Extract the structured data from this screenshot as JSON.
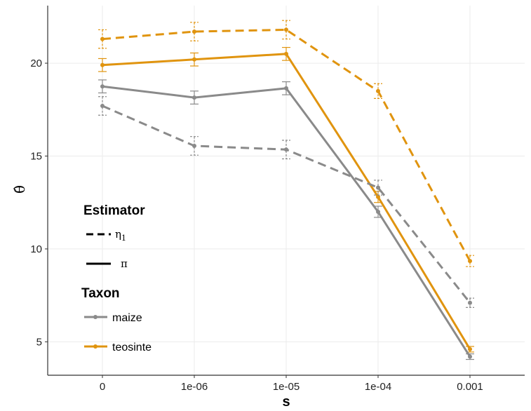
{
  "chart_data": {
    "type": "line",
    "xlabel": "s",
    "ylabel": "θ̂",
    "categories": [
      "0",
      "1e-06",
      "1e-05",
      "1e-04",
      "0.001"
    ],
    "ylim": [
      3.2,
      23.1
    ],
    "yticks": [
      5,
      10,
      15,
      20
    ],
    "grid": true,
    "legend": {
      "placement": "left-bottom-inside",
      "estimator_title": "Estimator",
      "estimator_entries": [
        {
          "label": "η",
          "sub": "1",
          "style": "dashed"
        },
        {
          "label": "π",
          "style": "solid"
        }
      ],
      "taxon_title": "Taxon",
      "taxon_entries": [
        {
          "label": "maize",
          "color": "#8a8a8a"
        },
        {
          "label": "teosinte",
          "color": "#e0940f"
        }
      ]
    },
    "series": [
      {
        "taxon": "teosinte",
        "estimator": "eta1",
        "color": "#e0940f",
        "style": "dashed",
        "values": [
          21.3,
          21.7,
          21.8,
          18.5,
          9.35
        ],
        "err": [
          0.5,
          0.5,
          0.5,
          0.4,
          0.3
        ]
      },
      {
        "taxon": "teosinte",
        "estimator": "pi",
        "color": "#e0940f",
        "style": "solid",
        "values": [
          19.9,
          20.2,
          20.5,
          12.8,
          4.6
        ],
        "err": [
          0.35,
          0.35,
          0.35,
          0.3,
          0.15
        ]
      },
      {
        "taxon": "maize",
        "estimator": "pi",
        "color": "#8a8a8a",
        "style": "solid",
        "values": [
          18.75,
          18.15,
          18.65,
          12.0,
          4.2
        ],
        "err": [
          0.35,
          0.35,
          0.35,
          0.3,
          0.15
        ]
      },
      {
        "taxon": "maize",
        "estimator": "eta1",
        "color": "#8a8a8a",
        "style": "dashed",
        "values": [
          17.7,
          15.55,
          15.35,
          13.3,
          7.1
        ],
        "err": [
          0.5,
          0.5,
          0.5,
          0.4,
          0.25
        ]
      }
    ]
  }
}
